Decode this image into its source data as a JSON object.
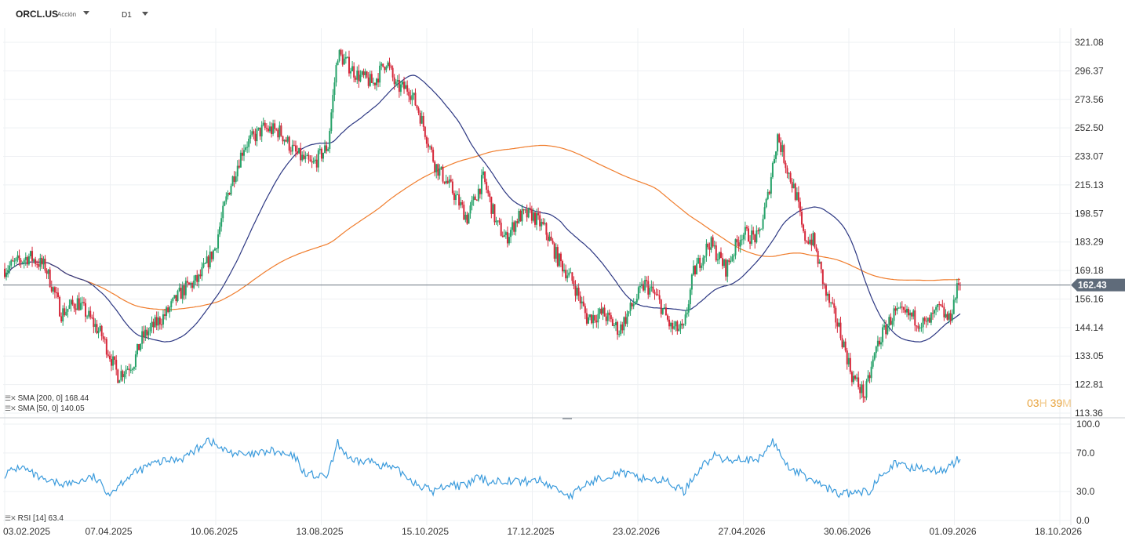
{
  "header": {
    "symbol": "ORCL.US",
    "instrument_type": "Acción",
    "timeframe": "D1"
  },
  "indicators": {
    "sma200_label": "SMA [200, 0] 168.44",
    "sma50_label": "SMA [50, 0] 140.05",
    "rsi_label": "RSI [14] 63.4"
  },
  "timer": {
    "hours": "03",
    "h_unit": "H",
    "minutes": "39",
    "m_unit": "M"
  },
  "colors": {
    "up": "#26a269",
    "down": "#d6283a",
    "sma200": "#f07d2d",
    "sma50": "#2c3782",
    "rsi": "#3b9bdc",
    "price_badge": "#5f6b7a"
  },
  "chart_data": {
    "type": "candlestick",
    "price_axis": {
      "scale": "log",
      "range": [
        113.36,
        321.08
      ],
      "ticks": [
        321.08,
        296.37,
        273.56,
        252.5,
        233.07,
        215.13,
        198.57,
        183.29,
        169.18,
        156.16,
        144.14,
        133.05,
        122.81,
        113.36
      ]
    },
    "time_axis": {
      "ticks": [
        "03.02.2025",
        "07.04.2025",
        "10.06.2025",
        "13.08.2025",
        "15.10.2025",
        "17.12.2025",
        "23.02.2026",
        "27.04.2026",
        "30.06.2026",
        "01.09.2026",
        "18.10.2026"
      ]
    },
    "last_price": 162.43,
    "rsi_axis": {
      "range": [
        0,
        100
      ],
      "ticks": [
        100.0,
        70.0,
        30.0,
        0.0
      ]
    },
    "series_shape": {
      "price_anchors": [
        [
          0,
          170
        ],
        [
          15,
          176
        ],
        [
          25,
          171
        ],
        [
          35,
          150
        ],
        [
          45,
          155
        ],
        [
          60,
          141
        ],
        [
          70,
          126
        ],
        [
          80,
          131
        ],
        [
          85,
          140
        ],
        [
          100,
          150
        ],
        [
          110,
          160
        ],
        [
          120,
          165
        ],
        [
          130,
          180
        ],
        [
          138,
          210
        ],
        [
          148,
          240
        ],
        [
          160,
          252
        ],
        [
          170,
          250
        ],
        [
          180,
          235
        ],
        [
          190,
          227
        ],
        [
          200,
          240
        ],
        [
          206,
          311
        ],
        [
          218,
          293
        ],
        [
          228,
          286
        ],
        [
          236,
          305
        ],
        [
          242,
          283
        ],
        [
          250,
          282
        ],
        [
          256,
          265
        ],
        [
          266,
          228
        ],
        [
          276,
          213
        ],
        [
          286,
          196
        ],
        [
          296,
          219
        ],
        [
          304,
          193
        ],
        [
          310,
          185
        ],
        [
          318,
          197
        ],
        [
          326,
          198
        ],
        [
          334,
          190
        ],
        [
          342,
          175
        ],
        [
          352,
          163
        ],
        [
          360,
          148
        ],
        [
          370,
          150
        ],
        [
          380,
          143
        ],
        [
          388,
          153
        ],
        [
          396,
          163
        ],
        [
          404,
          156
        ],
        [
          412,
          144
        ],
        [
          420,
          143
        ],
        [
          426,
          168
        ],
        [
          436,
          183
        ],
        [
          446,
          170
        ],
        [
          456,
          188
        ],
        [
          466,
          185
        ],
        [
          472,
          208
        ],
        [
          478,
          247
        ],
        [
          484,
          225
        ],
        [
          490,
          207
        ],
        [
          494,
          186
        ],
        [
          500,
          184
        ],
        [
          508,
          158
        ],
        [
          516,
          144
        ],
        [
          524,
          126
        ],
        [
          532,
          119
        ],
        [
          540,
          138
        ],
        [
          550,
          150
        ],
        [
          560,
          149
        ],
        [
          570,
          145
        ],
        [
          578,
          152
        ],
        [
          584,
          147
        ],
        [
          590,
          163
        ]
      ],
      "rsi_anchors": [
        [
          0,
          48
        ],
        [
          10,
          56
        ],
        [
          25,
          40
        ],
        [
          40,
          38
        ],
        [
          55,
          45
        ],
        [
          65,
          28
        ],
        [
          75,
          44
        ],
        [
          90,
          58
        ],
        [
          100,
          62
        ],
        [
          110,
          65
        ],
        [
          120,
          75
        ],
        [
          125,
          85
        ],
        [
          135,
          73
        ],
        [
          150,
          67
        ],
        [
          165,
          72
        ],
        [
          180,
          65
        ],
        [
          185,
          50
        ],
        [
          195,
          45
        ],
        [
          200,
          47
        ],
        [
          206,
          80
        ],
        [
          215,
          60
        ],
        [
          225,
          62
        ],
        [
          235,
          57
        ],
        [
          245,
          50
        ],
        [
          255,
          38
        ],
        [
          265,
          30
        ],
        [
          275,
          38
        ],
        [
          285,
          35
        ],
        [
          292,
          45
        ],
        [
          300,
          40
        ],
        [
          310,
          42
        ],
        [
          320,
          40
        ],
        [
          330,
          42
        ],
        [
          340,
          34
        ],
        [
          350,
          25
        ],
        [
          360,
          38
        ],
        [
          370,
          45
        ],
        [
          380,
          50
        ],
        [
          390,
          45
        ],
        [
          400,
          43
        ],
        [
          410,
          40
        ],
        [
          415,
          35
        ],
        [
          420,
          30
        ],
        [
          430,
          55
        ],
        [
          440,
          68
        ],
        [
          445,
          62
        ],
        [
          455,
          65
        ],
        [
          465,
          60
        ],
        [
          475,
          82
        ],
        [
          485,
          55
        ],
        [
          495,
          46
        ],
        [
          505,
          37
        ],
        [
          515,
          28
        ],
        [
          525,
          28
        ],
        [
          535,
          30
        ],
        [
          542,
          50
        ],
        [
          550,
          58
        ],
        [
          560,
          55
        ],
        [
          570,
          55
        ],
        [
          578,
          50
        ],
        [
          584,
          56
        ],
        [
          590,
          63.4
        ]
      ]
    }
  }
}
